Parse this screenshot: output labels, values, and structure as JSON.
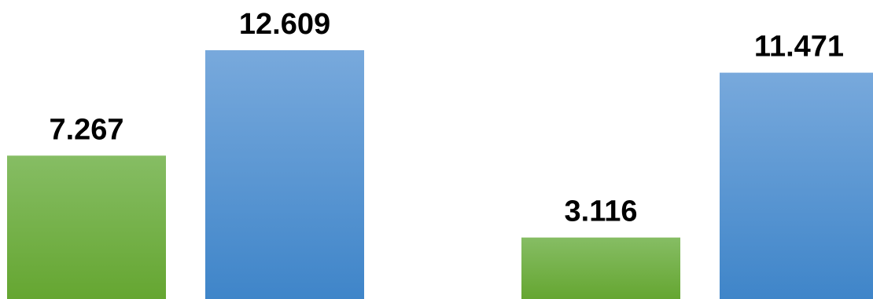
{
  "chart_data": {
    "type": "bar",
    "categories": [
      "",
      ""
    ],
    "series": [
      {
        "values": [
          7.267,
          3.116
        ],
        "labels": [
          "7.267",
          "3.116"
        ]
      },
      {
        "values": [
          12.609,
          11.471
        ],
        "labels": [
          "12.609",
          "11.471"
        ]
      }
    ],
    "ylim": [
      0,
      14
    ],
    "grid": false,
    "legend": "none"
  },
  "colors": {
    "series_green_top": "#86bd64",
    "series_green_bottom": "#65a631",
    "series_blue_top": "#78a9dc",
    "series_blue_bottom": "#3f85c9",
    "background": "#ffffff",
    "label_text": "#000000"
  }
}
